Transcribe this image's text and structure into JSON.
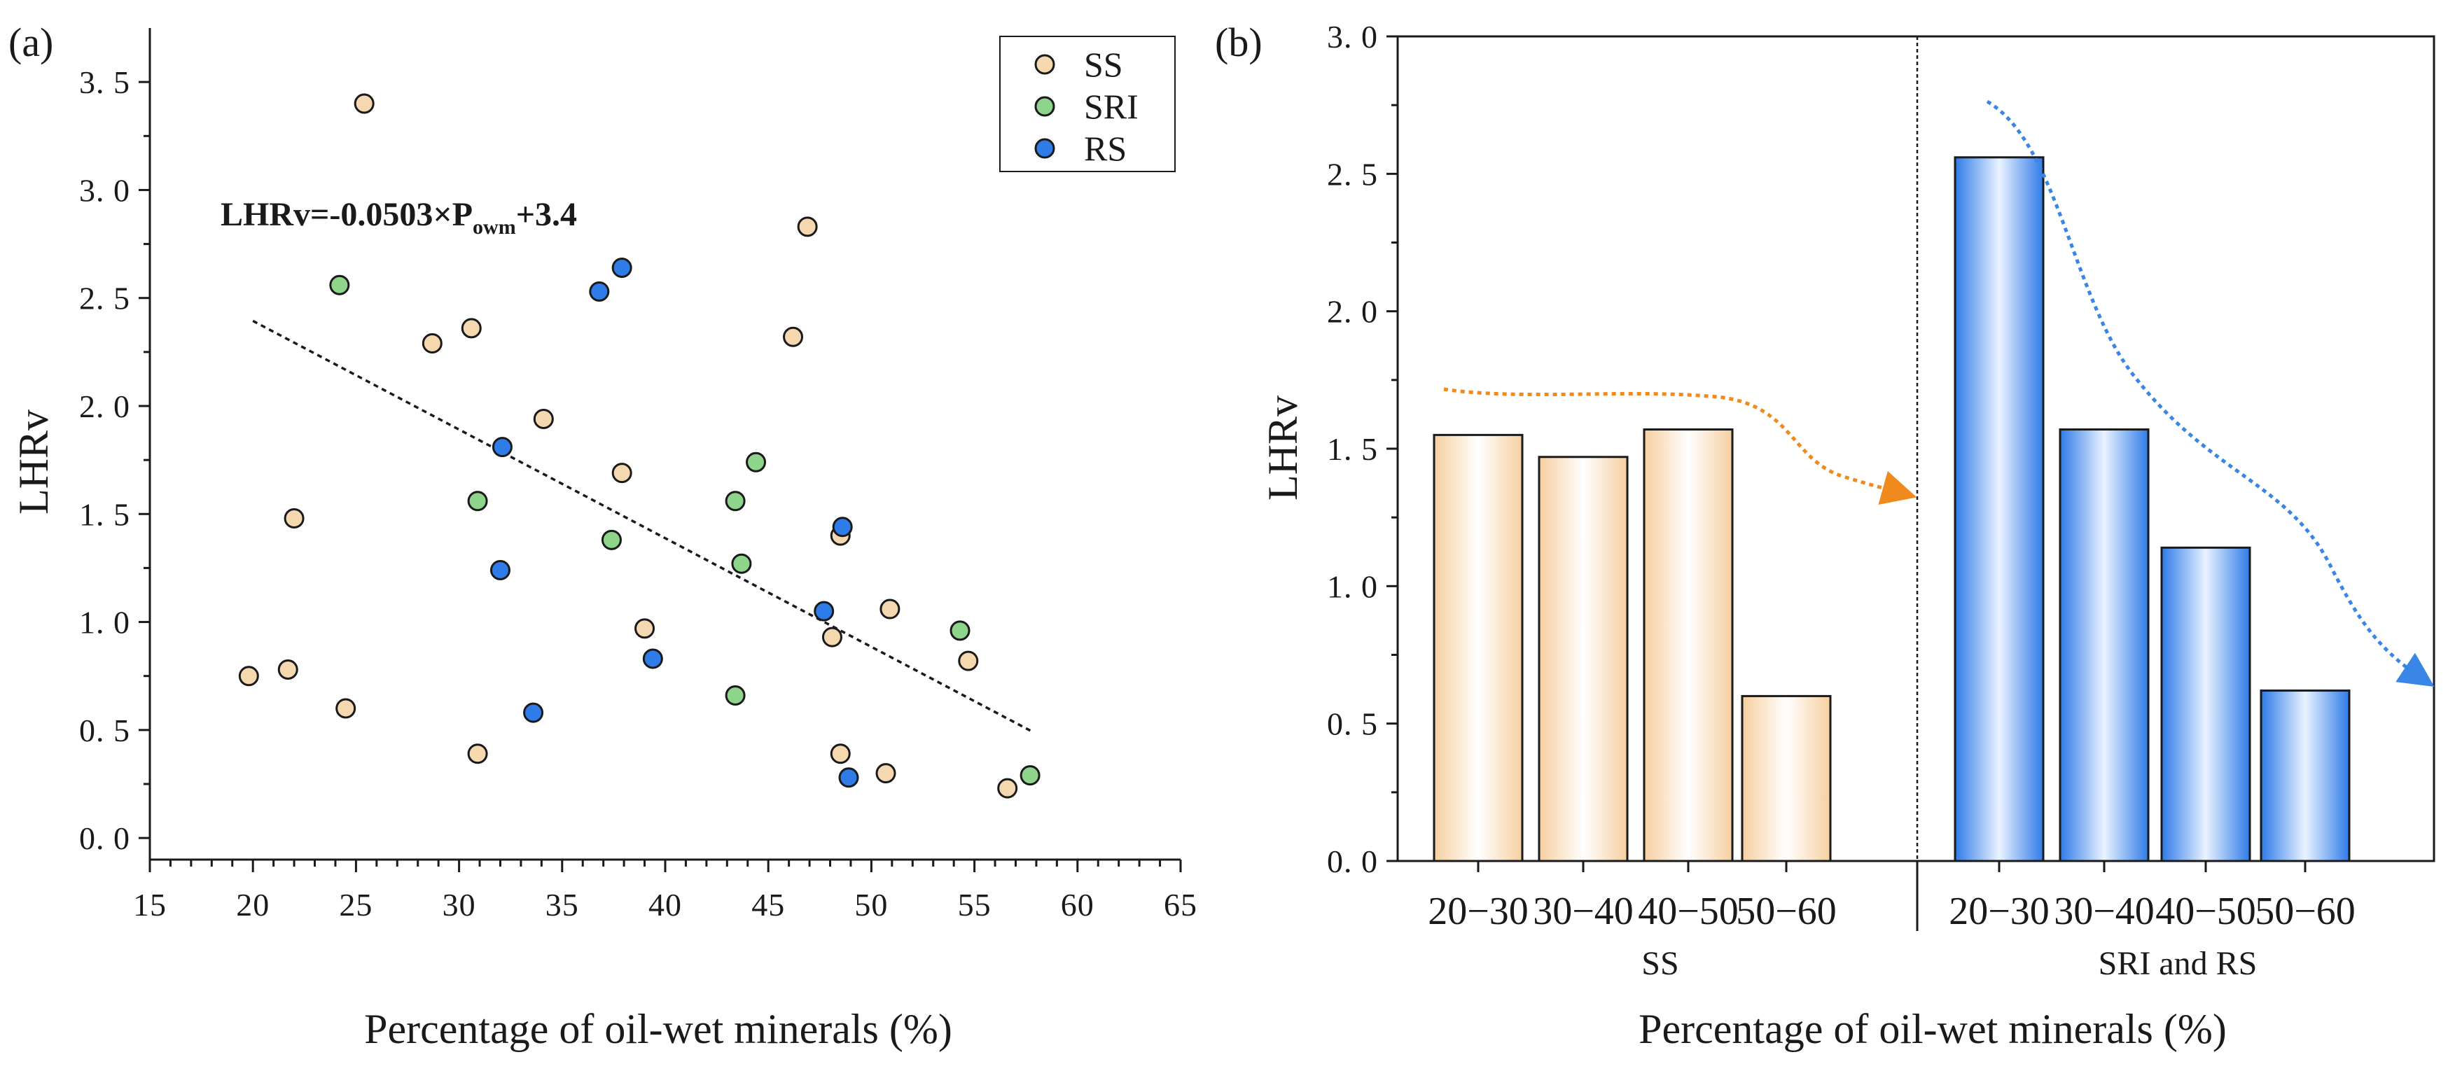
{
  "colors": {
    "ss_fill": "#F6D8B0",
    "sri_fill": "#8ED58B",
    "rs_fill": "#2F7BE8",
    "marker_edge": "#1a1a1a",
    "ss_bar_center": "#FFFFFF",
    "ss_bar_edge": "#F6CFA0",
    "rs_bar_center": "#FFFFFF",
    "rs_bar_edge": "#2F7BE8",
    "orange_arrow": "#F08A1C",
    "blue_arrow": "#3A86E6"
  },
  "chart_data": [
    {
      "id": "a",
      "panel_label": "(a)",
      "type": "scatter",
      "xlabel": "Percentage of oil-wet minerals (%)",
      "ylabel": "LHRv",
      "xlim": [
        15,
        65
      ],
      "ylim": [
        -0.1,
        3.75
      ],
      "xticks": [
        15,
        20,
        25,
        30,
        35,
        40,
        45,
        50,
        55,
        60,
        65
      ],
      "xtick_labels": [
        "15",
        "20",
        "25",
        "30",
        "35",
        "40",
        "45",
        "50",
        "55",
        "60",
        "65"
      ],
      "yticks": [
        0.0,
        0.5,
        1.0,
        1.5,
        2.0,
        2.5,
        3.0,
        3.5
      ],
      "ytick_labels": [
        "0. 0",
        "0. 5",
        "1. 0",
        "1. 5",
        "2. 0",
        "2. 5",
        "3. 0",
        "3. 5"
      ],
      "legend": [
        "SS",
        "SRI",
        "RS"
      ],
      "legend_position": "top-right",
      "equation": {
        "main": "LHRv=-0.0503×P",
        "sub": "owm",
        "tail": "+3.4"
      },
      "fit": {
        "slope": -0.0503,
        "intercept": 3.4,
        "x_range": [
          20,
          57.8
        ]
      },
      "series": [
        {
          "name": "SS",
          "points": [
            [
              19.8,
              0.75
            ],
            [
              21.7,
              0.78
            ],
            [
              22.0,
              1.48
            ],
            [
              24.5,
              0.6
            ],
            [
              25.4,
              3.4
            ],
            [
              28.7,
              2.29
            ],
            [
              30.6,
              2.36
            ],
            [
              30.9,
              0.39
            ],
            [
              34.1,
              1.94
            ],
            [
              37.9,
              1.69
            ],
            [
              39.0,
              0.97
            ],
            [
              46.2,
              2.32
            ],
            [
              46.9,
              2.83
            ],
            [
              48.1,
              0.93
            ],
            [
              48.5,
              1.4
            ],
            [
              48.5,
              0.39
            ],
            [
              50.7,
              0.3
            ],
            [
              50.9,
              1.06
            ],
            [
              54.7,
              0.82
            ],
            [
              56.6,
              0.23
            ]
          ]
        },
        {
          "name": "SRI",
          "points": [
            [
              24.2,
              2.56
            ],
            [
              30.9,
              1.56
            ],
            [
              37.4,
              1.38
            ],
            [
              43.4,
              1.56
            ],
            [
              43.7,
              1.27
            ],
            [
              44.4,
              1.74
            ],
            [
              43.4,
              0.66
            ],
            [
              54.3,
              0.96
            ],
            [
              57.7,
              0.29
            ]
          ]
        },
        {
          "name": "RS",
          "points": [
            [
              32.1,
              1.81
            ],
            [
              32.0,
              1.24
            ],
            [
              33.6,
              0.58
            ],
            [
              36.8,
              2.53
            ],
            [
              37.9,
              2.64
            ],
            [
              39.4,
              0.83
            ],
            [
              47.7,
              1.05
            ],
            [
              48.6,
              1.44
            ],
            [
              48.9,
              0.28
            ]
          ]
        }
      ]
    },
    {
      "id": "b",
      "panel_label": "(b)",
      "type": "bar",
      "xlabel": "Percentage of oil-wet minerals (%)",
      "ylabel": "LHRv",
      "ylim": [
        0,
        3.0
      ],
      "yticks": [
        0.0,
        0.5,
        1.0,
        1.5,
        2.0,
        2.5,
        3.0
      ],
      "ytick_labels": [
        "0. 0",
        "0. 5",
        "1. 0",
        "1. 5",
        "2. 0",
        "2. 5",
        "3. 0"
      ],
      "groups": [
        {
          "name": "SS",
          "categories": [
            "20−30",
            "30−40",
            "40−50",
            "50−60"
          ],
          "values": [
            1.55,
            1.47,
            1.57,
            0.6
          ]
        },
        {
          "name": "SRI and RS",
          "categories": [
            "20−30",
            "30−40",
            "40−50",
            "50−60"
          ],
          "values": [
            2.56,
            1.57,
            1.14,
            0.62
          ]
        }
      ]
    }
  ]
}
